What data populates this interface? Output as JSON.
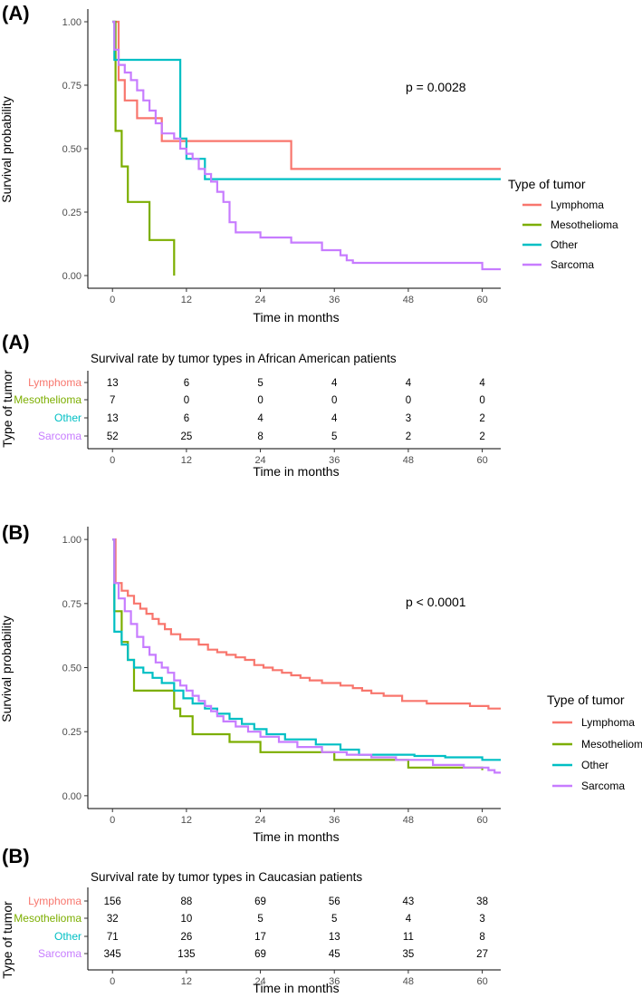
{
  "colors": {
    "Lymphoma": "#F8766D",
    "Mesothelioma": "#7CAE00",
    "Other": "#00BFC4",
    "Sarcoma": "#C77CFF"
  },
  "chart_data": [
    {
      "type": "line",
      "subtype": "kaplan-meier step",
      "panel_label": "(A)",
      "xlabel": "Time in months",
      "ylabel": "Survival probability",
      "xlim": [
        -4,
        63
      ],
      "ylim": [
        -0.05,
        1.05
      ],
      "xticks": [
        0,
        12,
        24,
        36,
        48,
        60
      ],
      "yticks": [
        0.0,
        0.25,
        0.5,
        0.75,
        1.0
      ],
      "ytick_labels": [
        "0.00",
        "0.25",
        "0.50",
        "0.75",
        "1.00"
      ],
      "annotation": "p = 0.0028",
      "legend_title": "Type of tumor",
      "series": [
        {
          "name": "Lymphoma",
          "x": [
            0,
            1,
            2,
            4,
            8,
            9,
            29
          ],
          "y": [
            1.0,
            0.77,
            0.69,
            0.62,
            0.53,
            0.53,
            0.42
          ]
        },
        {
          "name": "Mesothelioma",
          "x": [
            0,
            0.5,
            1.5,
            2.5,
            6,
            10
          ],
          "y": [
            1.0,
            0.57,
            0.43,
            0.29,
            0.14,
            0.0
          ]
        },
        {
          "name": "Other",
          "x": [
            0,
            0.3,
            11,
            12,
            15
          ],
          "y": [
            1.0,
            0.85,
            0.54,
            0.46,
            0.38
          ]
        },
        {
          "name": "Sarcoma",
          "x": [
            0,
            0.3,
            1,
            2,
            3,
            4,
            5,
            6,
            7,
            8,
            10,
            11,
            12,
            13,
            14,
            15,
            16,
            17,
            18,
            19,
            20,
            24,
            29,
            34,
            37,
            38,
            39,
            60
          ],
          "y": [
            1.0,
            0.89,
            0.83,
            0.8,
            0.77,
            0.73,
            0.69,
            0.65,
            0.6,
            0.56,
            0.54,
            0.5,
            0.48,
            0.46,
            0.42,
            0.4,
            0.37,
            0.33,
            0.29,
            0.21,
            0.17,
            0.15,
            0.13,
            0.1,
            0.08,
            0.06,
            0.05,
            0.025
          ]
        }
      ]
    },
    {
      "type": "table",
      "panel_label": "(A)",
      "title": "Survival rate by tumor types in African American patients",
      "xlabel": "Time in months",
      "ylabel": "Type of tumor",
      "xlim": [
        -4,
        63
      ],
      "times": [
        0,
        12,
        24,
        36,
        48,
        60
      ],
      "time_labels": [
        "0",
        "12",
        "24",
        "36",
        "48",
        "60"
      ],
      "rows": [
        {
          "name": "Lymphoma",
          "values": [
            13,
            6,
            5,
            4,
            4,
            4
          ]
        },
        {
          "name": "Mesothelioma",
          "values": [
            7,
            0,
            0,
            0,
            0,
            0
          ]
        },
        {
          "name": "Other",
          "values": [
            13,
            6,
            4,
            4,
            3,
            2
          ]
        },
        {
          "name": "Sarcoma",
          "values": [
            52,
            25,
            8,
            5,
            2,
            2
          ]
        }
      ]
    },
    {
      "type": "line",
      "subtype": "kaplan-meier step",
      "panel_label": "(B)",
      "xlabel": "Time in months",
      "ylabel": "Survival probability",
      "xlim": [
        -4,
        63
      ],
      "ylim": [
        -0.05,
        1.05
      ],
      "xticks": [
        0,
        12,
        24,
        36,
        48,
        60
      ],
      "yticks": [
        0.0,
        0.25,
        0.5,
        0.75,
        1.0
      ],
      "ytick_labels": [
        "0.00",
        "0.25",
        "0.50",
        "0.75",
        "1.00"
      ],
      "annotation": "p < 0.0001",
      "legend_title": "Type of tumor",
      "series": [
        {
          "name": "Lymphoma",
          "x": [
            0,
            0.5,
            1.5,
            2.5,
            3.5,
            4.5,
            5.5,
            6.5,
            7.5,
            8.5,
            9.5,
            11,
            14,
            15.5,
            17,
            18.5,
            20,
            21.5,
            23,
            24.5,
            26,
            27.5,
            29,
            30.5,
            32,
            34,
            37,
            39,
            40.5,
            42,
            44,
            47,
            51,
            58,
            61
          ],
          "y": [
            1.0,
            0.83,
            0.8,
            0.78,
            0.75,
            0.73,
            0.71,
            0.69,
            0.67,
            0.65,
            0.63,
            0.61,
            0.59,
            0.57,
            0.56,
            0.55,
            0.54,
            0.53,
            0.51,
            0.5,
            0.49,
            0.48,
            0.47,
            0.46,
            0.45,
            0.44,
            0.43,
            0.42,
            0.41,
            0.4,
            0.39,
            0.37,
            0.36,
            0.35,
            0.34
          ]
        },
        {
          "name": "Mesothelioma",
          "x": [
            0,
            0.3,
            1.5,
            2.5,
            3.5,
            10,
            11,
            13,
            19,
            24,
            36,
            48,
            60
          ],
          "y": [
            1.0,
            0.72,
            0.6,
            0.53,
            0.41,
            0.34,
            0.31,
            0.24,
            0.21,
            0.17,
            0.14,
            0.11,
            0.1
          ]
        },
        {
          "name": "Other",
          "x": [
            0,
            0.3,
            1.5,
            2.5,
            3.5,
            5,
            6.5,
            8,
            10,
            11.5,
            13,
            15,
            17,
            19,
            21,
            23,
            25,
            28,
            33,
            37,
            40,
            49,
            54,
            60
          ],
          "y": [
            1.0,
            0.64,
            0.59,
            0.53,
            0.5,
            0.48,
            0.46,
            0.44,
            0.41,
            0.38,
            0.36,
            0.34,
            0.32,
            0.3,
            0.28,
            0.26,
            0.24,
            0.22,
            0.2,
            0.18,
            0.16,
            0.155,
            0.15,
            0.14
          ]
        },
        {
          "name": "Sarcoma",
          "x": [
            0,
            0.3,
            1,
            2,
            3,
            4,
            5,
            6,
            7,
            8,
            9,
            10,
            11,
            12,
            13,
            14,
            15,
            16,
            17,
            18,
            20,
            22,
            24,
            27,
            30,
            34,
            38,
            42,
            46,
            52,
            57,
            61,
            62
          ],
          "y": [
            1.0,
            0.83,
            0.77,
            0.72,
            0.67,
            0.62,
            0.58,
            0.55,
            0.52,
            0.5,
            0.48,
            0.45,
            0.43,
            0.41,
            0.39,
            0.37,
            0.35,
            0.33,
            0.31,
            0.29,
            0.27,
            0.25,
            0.23,
            0.21,
            0.19,
            0.17,
            0.16,
            0.15,
            0.14,
            0.12,
            0.11,
            0.1,
            0.09
          ]
        }
      ]
    },
    {
      "type": "table",
      "panel_label": "(B)",
      "title": "Survival rate by tumor types in Caucasian patients",
      "xlabel": "Time in months",
      "ylabel": "Type of tumor",
      "xlim": [
        -4,
        63
      ],
      "times": [
        0,
        12,
        24,
        36,
        48,
        60
      ],
      "time_labels": [
        "0",
        "12",
        "24",
        "36",
        "48",
        "60"
      ],
      "rows": [
        {
          "name": "Lymphoma",
          "values": [
            156,
            88,
            69,
            56,
            43,
            38
          ]
        },
        {
          "name": "Mesothelioma",
          "values": [
            32,
            10,
            5,
            5,
            4,
            3
          ]
        },
        {
          "name": "Other",
          "values": [
            71,
            26,
            17,
            13,
            11,
            8
          ]
        },
        {
          "name": "Sarcoma",
          "values": [
            345,
            135,
            69,
            45,
            35,
            27
          ]
        }
      ]
    }
  ]
}
